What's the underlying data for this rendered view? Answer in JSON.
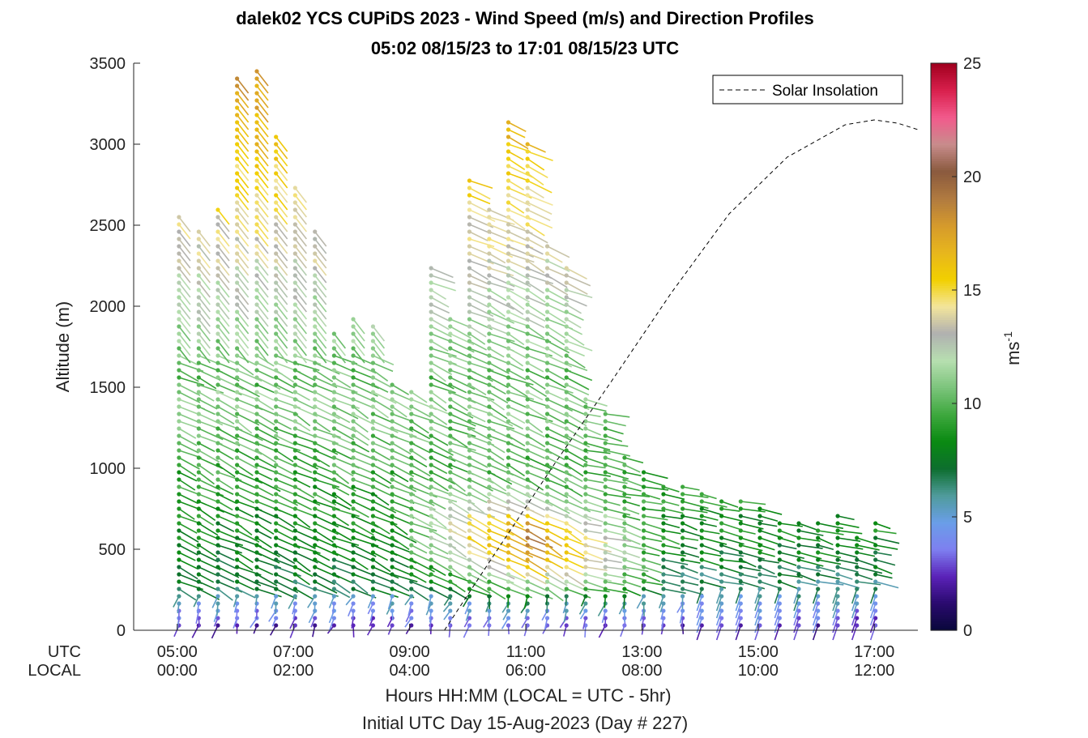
{
  "chart_data": {
    "type": "scatter",
    "subtype": "wind-barb profile (lollipop vectors colored by speed)",
    "title": "dalek02 YCS CUPiDS 2023 - Wind Speed (m/s) and Direction Profiles",
    "subtitle": "05:02 08/15/23 to 17:01 08/15/23  UTC",
    "ylabel": "Altitude (m)",
    "xlabel": "Hours HH:MM  (LOCAL = UTC - 5hr)",
    "xlabel2": "Initial UTC Day 15-Aug-2023 (Day # 227)",
    "x_row_labels": [
      "UTC",
      "LOCAL"
    ],
    "xlim_hours_utc": [
      4.25,
      17.75
    ],
    "ylim": [
      0,
      3500
    ],
    "yticks": [
      "0",
      "500",
      "1000",
      "1500",
      "2000",
      "2500",
      "3000",
      "3500"
    ],
    "xticks": [
      {
        "utc": "05:00",
        "local": "00:00",
        "hour": 5
      },
      {
        "utc": "07:00",
        "local": "02:00",
        "hour": 7
      },
      {
        "utc": "09:00",
        "local": "04:00",
        "hour": 9
      },
      {
        "utc": "11:00",
        "local": "06:00",
        "hour": 11
      },
      {
        "utc": "13:00",
        "local": "08:00",
        "hour": 13
      },
      {
        "utc": "15:00",
        "local": "10:00",
        "hour": 15
      },
      {
        "utc": "17:00",
        "local": "12:00",
        "hour": 17
      }
    ],
    "colorbar": {
      "label": "ms",
      "label_exponent": "-1",
      "range": [
        0,
        25
      ],
      "ticks": [
        "0",
        "5",
        "10",
        "15",
        "20",
        "25"
      ],
      "colormap": [
        "#08083a",
        "#2a0a6e",
        "#5a22b8",
        "#7e7ff0",
        "#6a9ee8",
        "#4f9b9b",
        "#0d6e2e",
        "#0a8a12",
        "#3ea83e",
        "#7cc47c",
        "#b7dfb0",
        "#b0b0b0",
        "#f3e59b",
        "#f2d000",
        "#e7b61d",
        "#d59a2c",
        "#b07a40",
        "#8a5a3e",
        "#c88c8c",
        "#f25a8c",
        "#d9204d",
        "#a0001e"
      ]
    },
    "legend": {
      "entries": [
        "Solar Insolation"
      ],
      "position": "top-right",
      "style": "dashed black"
    },
    "solar_insolation_curve": {
      "x_hours_utc": [
        9.6,
        10.5,
        11.5,
        12.5,
        13.5,
        14.5,
        15.5,
        16.5,
        17.0,
        17.4,
        17.75
      ],
      "y_altitude": [
        0,
        490,
        1030,
        1550,
        2080,
        2570,
        2920,
        3120,
        3150,
        3130,
        3090
      ]
    },
    "profiles": [
      {
        "time": "05:02",
        "hour": 5.03,
        "top_alt": 2560
      },
      {
        "time": "05:22",
        "hour": 5.37,
        "top_alt": 2500
      },
      {
        "time": "05:42",
        "hour": 5.7,
        "top_alt": 2600
      },
      {
        "time": "06:02",
        "hour": 6.03,
        "top_alt": 3420
      },
      {
        "time": "06:22",
        "hour": 6.37,
        "top_alt": 3470
      },
      {
        "time": "06:42",
        "hour": 6.7,
        "top_alt": 3080
      },
      {
        "time": "07:02",
        "hour": 7.03,
        "top_alt": 2740
      },
      {
        "time": "07:22",
        "hour": 7.37,
        "top_alt": 2480
      },
      {
        "time": "07:42",
        "hour": 7.7,
        "top_alt": 1870
      },
      {
        "time": "08:02",
        "hour": 8.03,
        "top_alt": 1960
      },
      {
        "time": "08:22",
        "hour": 8.37,
        "top_alt": 1880
      },
      {
        "time": "08:42",
        "hour": 8.7,
        "top_alt": 1540
      },
      {
        "time": "09:02",
        "hour": 9.03,
        "top_alt": 1500
      },
      {
        "time": "09:22",
        "hour": 9.37,
        "top_alt": 2260
      },
      {
        "time": "09:42",
        "hour": 9.7,
        "top_alt": 1930
      },
      {
        "time": "10:02",
        "hour": 10.03,
        "top_alt": 2790
      },
      {
        "time": "10:22",
        "hour": 10.37,
        "top_alt": 2600
      },
      {
        "time": "10:42",
        "hour": 10.7,
        "top_alt": 3160
      },
      {
        "time": "11:02",
        "hour": 11.03,
        "top_alt": 3040
      },
      {
        "time": "11:22",
        "hour": 11.37,
        "top_alt": 2400
      },
      {
        "time": "11:42",
        "hour": 11.7,
        "top_alt": 2260
      },
      {
        "time": "12:02",
        "hour": 12.03,
        "top_alt": 1450
      },
      {
        "time": "12:22",
        "hour": 12.37,
        "top_alt": 1360
      },
      {
        "time": "12:42",
        "hour": 12.7,
        "top_alt": 1080
      },
      {
        "time": "13:02",
        "hour": 13.03,
        "top_alt": 1010
      },
      {
        "time": "13:22",
        "hour": 13.37,
        "top_alt": 920
      },
      {
        "time": "13:42",
        "hour": 13.7,
        "top_alt": 900
      },
      {
        "time": "14:02",
        "hour": 14.03,
        "top_alt": 880
      },
      {
        "time": "14:22",
        "hour": 14.37,
        "top_alt": 820
      },
      {
        "time": "14:42",
        "hour": 14.7,
        "top_alt": 810
      },
      {
        "time": "15:02",
        "hour": 15.03,
        "top_alt": 780
      },
      {
        "time": "15:22",
        "hour": 15.37,
        "top_alt": 680
      },
      {
        "time": "15:42",
        "hour": 15.7,
        "top_alt": 680
      },
      {
        "time": "16:02",
        "hour": 16.03,
        "top_alt": 680
      },
      {
        "time": "16:22",
        "hour": 16.37,
        "top_alt": 720
      },
      {
        "time": "16:42",
        "hour": 16.7,
        "top_alt": 580
      },
      {
        "time": "17:01",
        "hour": 17.02,
        "top_alt": 680
      }
    ]
  }
}
